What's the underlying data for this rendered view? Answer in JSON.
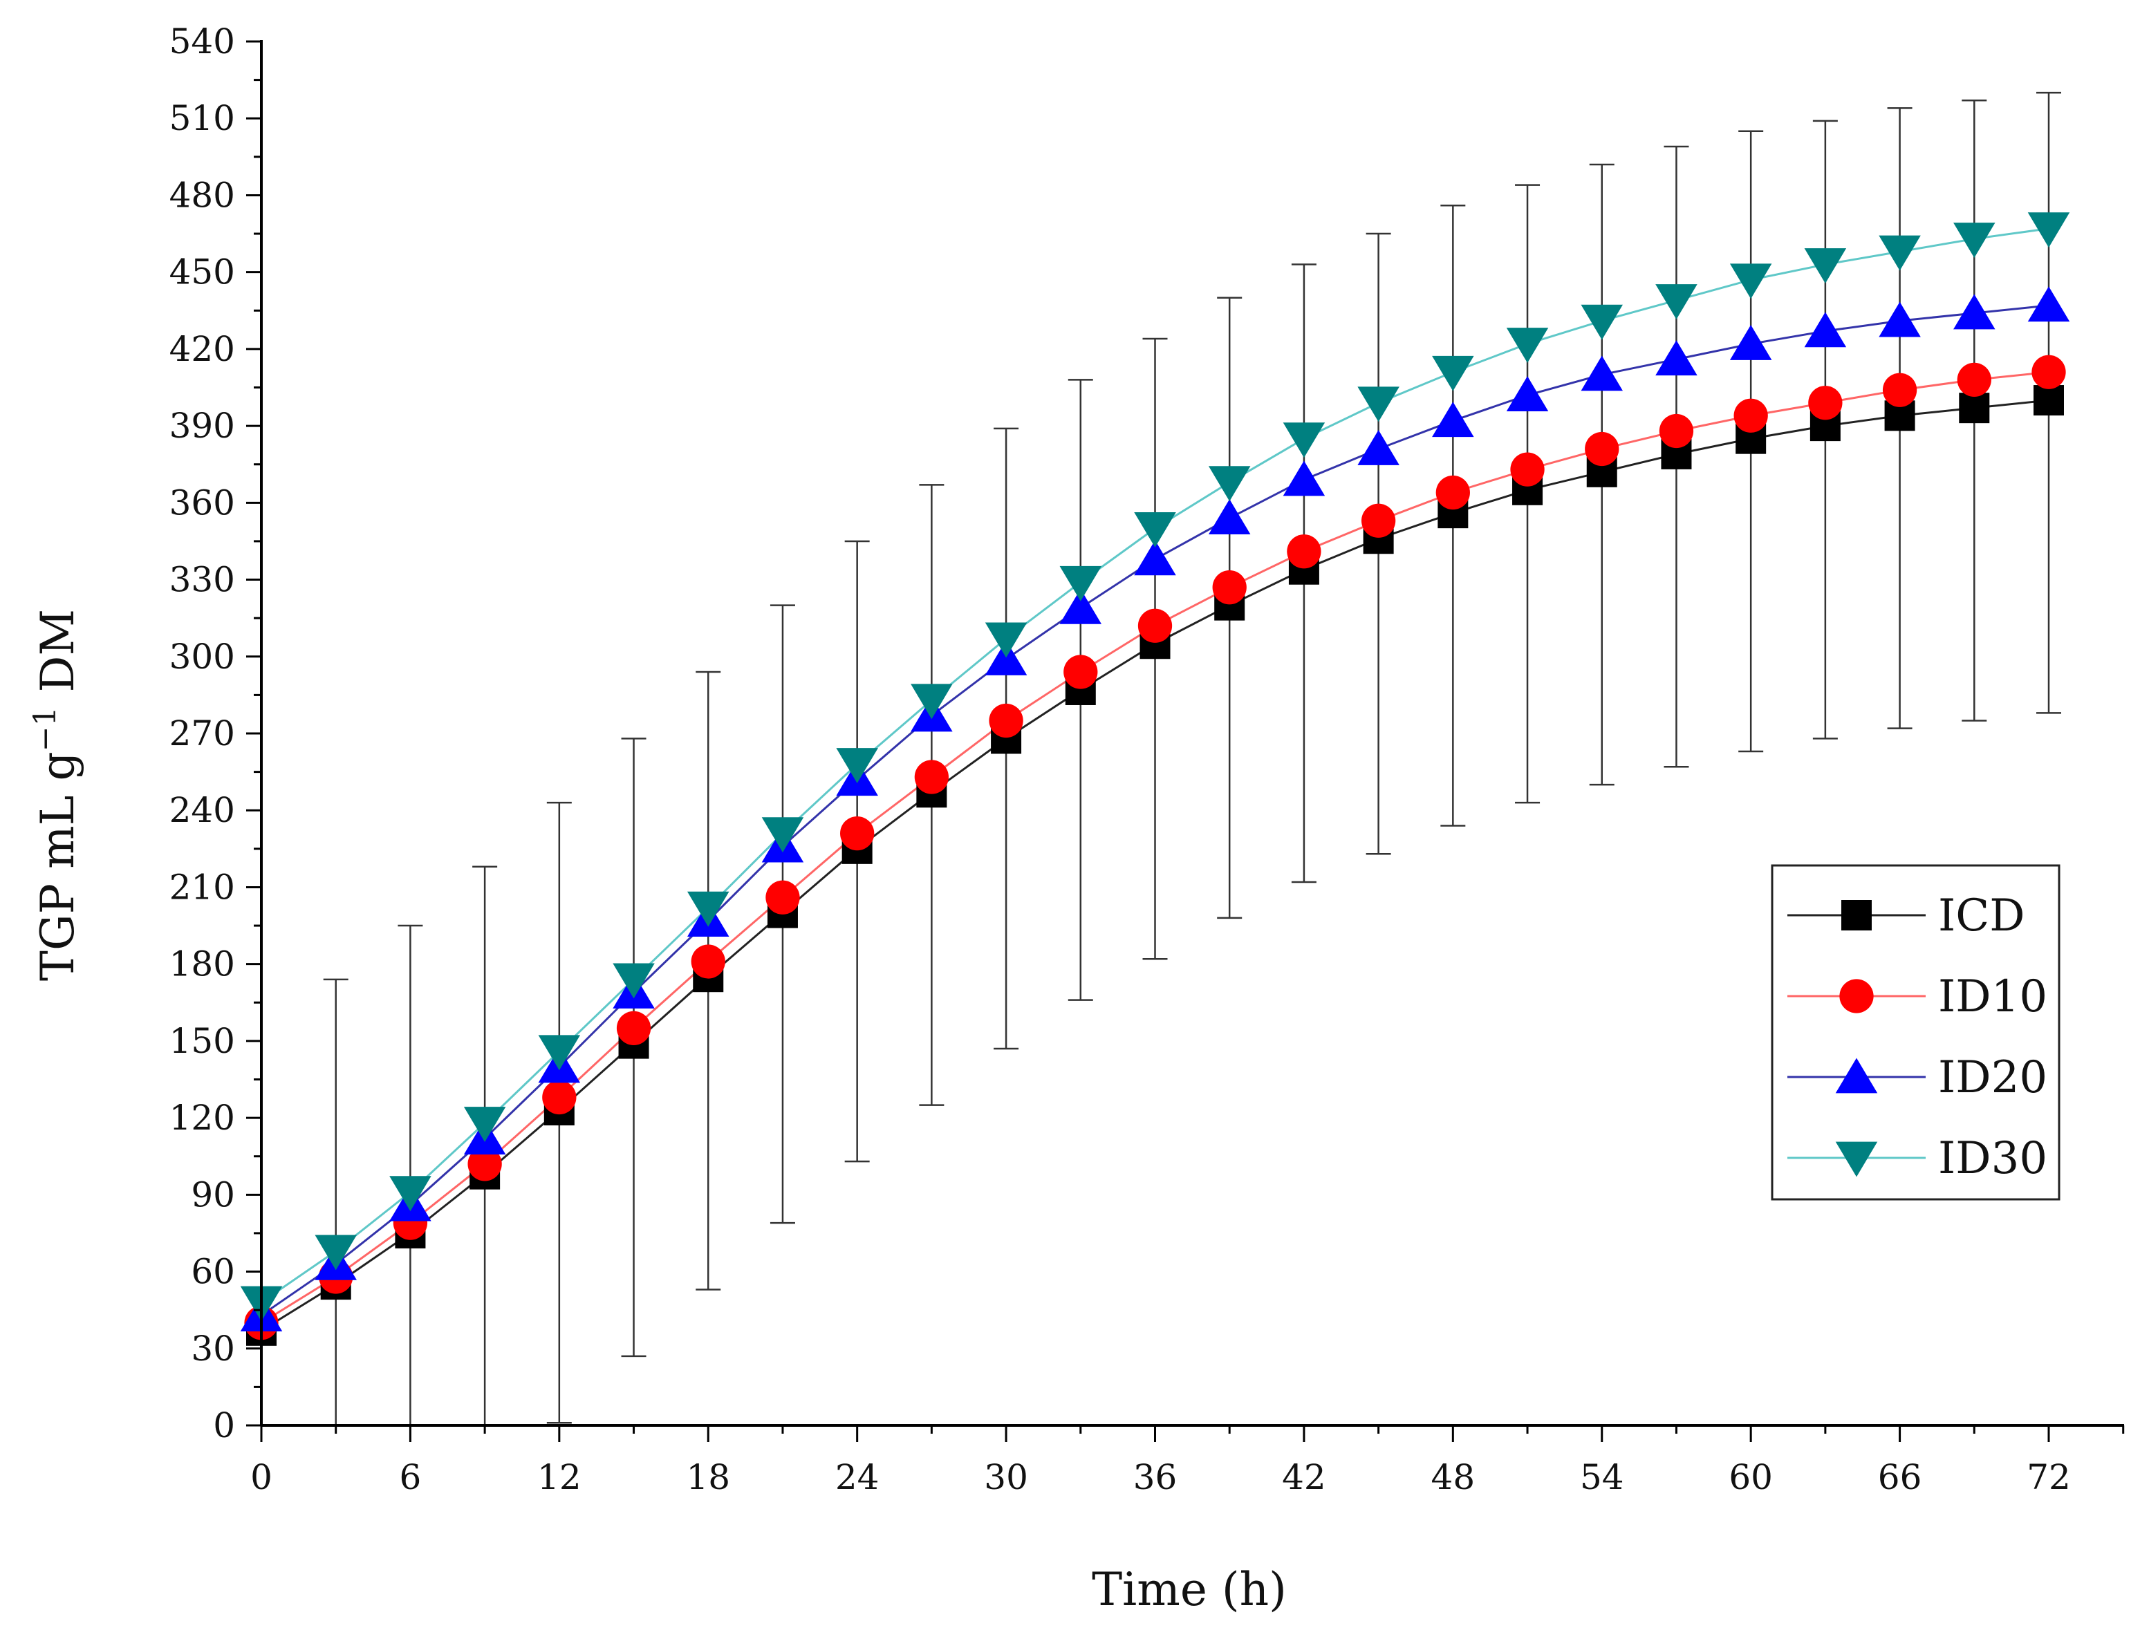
{
  "chart_data": {
    "type": "line",
    "title": "",
    "xlabel": "Time (h)",
    "ylabel_main": "TGP mL g",
    "ylabel_sup": "−1",
    "ylabel_tail": " DM",
    "xlim": [
      0,
      72
    ],
    "ylim": [
      0,
      540
    ],
    "x_ticks": [
      "0",
      "6",
      "12",
      "18",
      "24",
      "30",
      "36",
      "42",
      "48",
      "54",
      "60",
      "66",
      "72"
    ],
    "y_ticks": [
      "0",
      "30",
      "60",
      "90",
      "120",
      "150",
      "180",
      "210",
      "240",
      "270",
      "300",
      "330",
      "360",
      "390",
      "420",
      "450",
      "480",
      "510",
      "540"
    ],
    "grid": false,
    "legend_position": "right-middle",
    "x": [
      0,
      3,
      6,
      9,
      12,
      15,
      18,
      21,
      24,
      27,
      30,
      33,
      36,
      39,
      42,
      45,
      48,
      51,
      54,
      57,
      60,
      63,
      66,
      69,
      72
    ],
    "series": [
      {
        "name": "ICD",
        "marker": "square",
        "color": "#000000",
        "line_color": "#222222",
        "values": [
          37,
          55,
          75,
          98,
          123,
          149,
          175,
          200,
          225,
          247,
          268,
          287,
          305,
          320,
          334,
          346,
          356,
          365,
          372,
          379,
          385,
          390,
          394,
          397,
          400
        ]
      },
      {
        "name": "ID10",
        "marker": "circle",
        "color": "#ff0000",
        "line_color": "#ff6666",
        "values": [
          40,
          58,
          79,
          102,
          128,
          155,
          181,
          206,
          231,
          253,
          275,
          294,
          312,
          327,
          341,
          353,
          364,
          373,
          381,
          388,
          394,
          399,
          404,
          408,
          411
        ]
      },
      {
        "name": "ID20",
        "marker": "triangle-up",
        "color": "#0000ff",
        "line_color": "#3333aa",
        "values": [
          43,
          63,
          86,
          112,
          140,
          169,
          197,
          226,
          252,
          277,
          299,
          319,
          338,
          354,
          369,
          381,
          392,
          402,
          410,
          416,
          422,
          427,
          431,
          434,
          437
        ]
      },
      {
        "name": "ID30",
        "marker": "triangle-down",
        "color": "#008080",
        "line_color": "#5fc8c8",
        "values": [
          48,
          68,
          91,
          118,
          146,
          174,
          202,
          231,
          258,
          283,
          307,
          329,
          350,
          368,
          385,
          399,
          411,
          422,
          431,
          439,
          447,
          453,
          458,
          463,
          467
        ]
      }
    ],
    "error_bars": {
      "x": [
        3,
        6,
        9,
        12,
        15,
        18,
        21,
        24,
        27,
        30,
        33,
        36,
        39,
        42,
        45,
        48,
        51,
        54,
        57,
        60,
        63,
        66,
        69,
        72
      ],
      "low": [
        0,
        0,
        0,
        1,
        27,
        53,
        79,
        103,
        125,
        147,
        166,
        182,
        198,
        212,
        223,
        234,
        243,
        250,
        257,
        263,
        268,
        272,
        275,
        278
      ],
      "high": [
        174,
        195,
        218,
        243,
        268,
        294,
        320,
        345,
        367,
        389,
        408,
        424,
        440,
        453,
        465,
        476,
        484,
        492,
        499,
        505,
        509,
        514,
        517,
        520
      ]
    }
  }
}
